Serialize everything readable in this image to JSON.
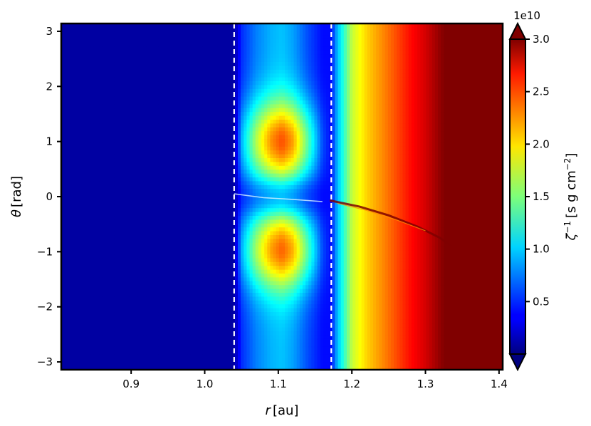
{
  "chart_data": {
    "type": "heatmap",
    "title": "",
    "xlabel": "r [au]",
    "ylabel": "θ [rad]",
    "xlim": [
      0.805,
      1.405
    ],
    "ylim": [
      -3.1416,
      3.1416
    ],
    "x_ticks": [
      0.9,
      1.0,
      1.1,
      1.2,
      1.3,
      1.4
    ],
    "x_tick_labels": [
      "0.9",
      "1.0",
      "1.1",
      "1.2",
      "1.3",
      "1.4"
    ],
    "y_ticks": [
      -3,
      -2,
      -1,
      0,
      1,
      2,
      3
    ],
    "y_tick_labels": [
      "−3",
      "−2",
      "−1",
      "0",
      "1",
      "2",
      "3"
    ],
    "dashed_vlines_x": [
      1.04,
      1.172
    ],
    "dashed_vline_color": "#ffffff",
    "colormap": "jet",
    "colorbar": {
      "label": "ζ⁻¹ [s g cm⁻²]",
      "label_prefix": "ζ",
      "label_sup": "−1",
      "label_units_start": "[s g cm",
      "label_units_sup": "−2",
      "label_units_end": "]",
      "exponent_label": "1e10",
      "range": [
        0.0,
        3.0
      ],
      "extend": "both",
      "ticks": [
        0.5,
        1.0,
        1.5,
        2.0,
        2.5,
        3.0
      ],
      "tick_labels": [
        "0.5",
        "1.0",
        "1.5",
        "2.0",
        "2.5",
        "3.0"
      ]
    },
    "radial_profile": {
      "r": [
        0.805,
        1.04,
        1.05,
        1.07,
        1.09,
        1.105,
        1.12,
        1.14,
        1.16,
        1.172,
        1.18,
        1.19,
        1.2,
        1.22,
        1.24,
        1.26,
        1.28,
        1.3,
        1.32,
        1.34,
        1.405
      ],
      "value_at_theta_0": [
        0.1,
        0.1,
        0.5,
        0.75,
        0.9,
        0.95,
        0.85,
        0.6,
        0.4,
        0.4,
        0.9,
        1.3,
        1.7,
        2.0,
        2.2,
        2.4,
        2.6,
        2.75,
        2.95,
        3.1,
        3.2
      ],
      "bump_amplitude_at_theta_pm1": [
        0,
        0,
        0.4,
        0.9,
        1.3,
        1.45,
        1.3,
        0.8,
        0.2,
        0,
        0,
        0,
        0,
        0,
        0,
        0,
        0,
        0,
        0,
        0,
        0
      ]
    }
  }
}
